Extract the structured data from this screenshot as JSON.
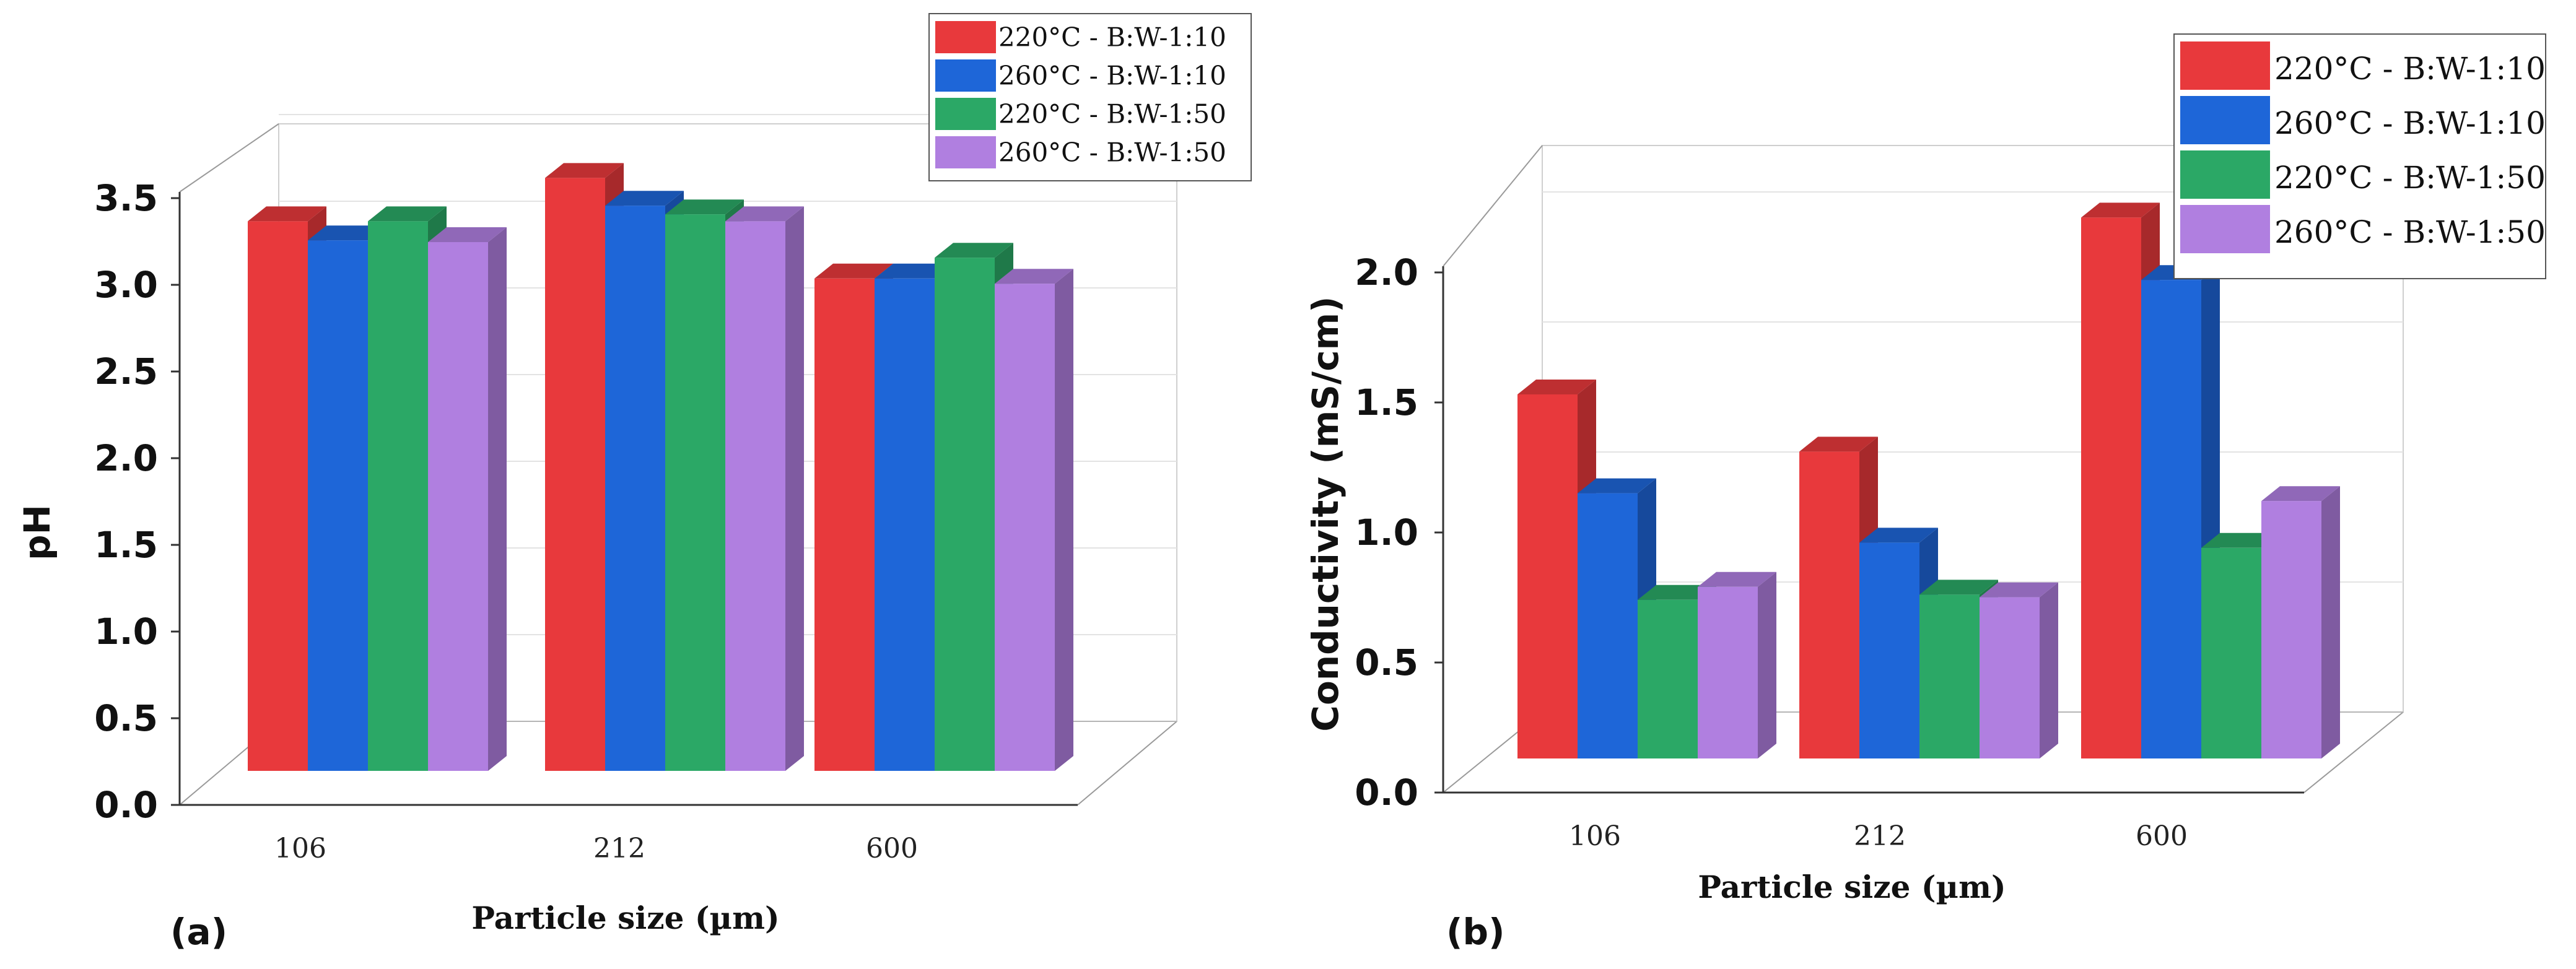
{
  "colors": {
    "s1": "#e8393c",
    "s2": "#1e66d8",
    "s3": "#2ba866",
    "s4": "#b07fe0"
  },
  "chart_data": [
    {
      "type": "bar",
      "panel_label": "(a)",
      "categories": [
        "106",
        "212",
        "600"
      ],
      "xlabel": "Particle size (µm)",
      "ylabel": "pH",
      "ylim": [
        0,
        3.5
      ],
      "yticks": [
        "0.0",
        "0.5",
        "1.0",
        "1.5",
        "2.0",
        "2.5",
        "3.0",
        "3.5"
      ],
      "grid": true,
      "legend_position": "top-right",
      "series": [
        {
          "name": "220°C - B:W-1:10",
          "values": [
            3.17,
            3.42,
            2.84
          ]
        },
        {
          "name": "260°C - B:W-1:10",
          "values": [
            3.06,
            3.26,
            2.84
          ]
        },
        {
          "name": "220°C - B:W-1:50",
          "values": [
            3.17,
            3.21,
            2.96
          ]
        },
        {
          "name": "260°C - B:W-1:50",
          "values": [
            3.05,
            3.17,
            2.81
          ]
        }
      ]
    },
    {
      "type": "bar",
      "panel_label": "(b)",
      "categories": [
        "106",
        "212",
        "600"
      ],
      "xlabel": "Particle size (µm)",
      "ylabel": "Conductivity (mS/cm)",
      "ylim": [
        0,
        2.0
      ],
      "yticks": [
        "0.0",
        "0.5",
        "1.0",
        "1.5",
        "2.0"
      ],
      "grid": true,
      "legend_position": "top-right",
      "series": [
        {
          "name": "220°C - B:W-1:10",
          "values": [
            1.4,
            1.18,
            2.08
          ]
        },
        {
          "name": "260°C - B:W-1:10",
          "values": [
            1.02,
            0.83,
            1.84
          ]
        },
        {
          "name": "220°C - B:W-1:50",
          "values": [
            0.61,
            0.63,
            0.81
          ]
        },
        {
          "name": "260°C - B:W-1:50",
          "values": [
            0.66,
            0.62,
            0.99
          ]
        }
      ]
    }
  ]
}
